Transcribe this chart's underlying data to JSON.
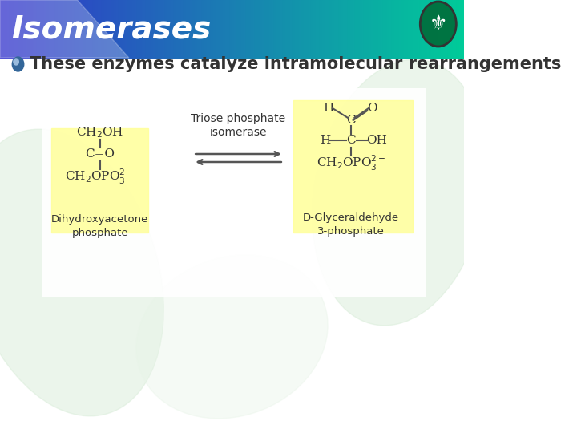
{
  "title": "Isomerases",
  "title_color": "#FFFFFF",
  "title_bg_left": "#3333CC",
  "title_bg_right": "#00CC99",
  "slide_bg": "#FFFFFF",
  "bullet_text": "These enzymes catalyze intramolecular rearrangements",
  "enzyme_label": "Triose phosphate\nisomerase",
  "left_molecule": {
    "lines": [
      "CH₂OH",
      "|",
      "C=O",
      "|",
      "CH₂OPO₃²⁻"
    ],
    "name": "Dihydroxyacetone\nphosphate",
    "highlight_color": "#FFFF99"
  },
  "right_molecule": {
    "name": "D-Glyceraldehyde\n3-phosphate",
    "highlight_color": "#FFFF99"
  },
  "arrow_color": "#555555",
  "text_color": "#333333",
  "bond_color": "#555555"
}
